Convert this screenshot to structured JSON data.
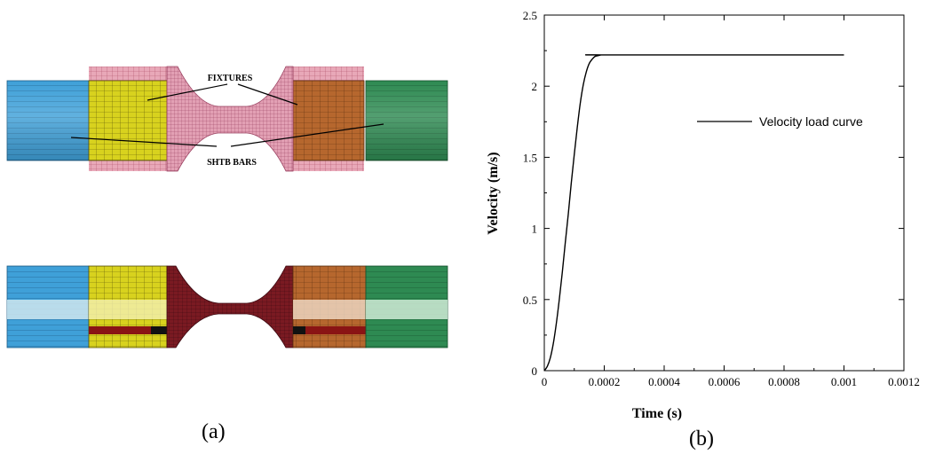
{
  "figure_a": {
    "caption": "(a)",
    "labels": {
      "fixtures": "FIXTURES",
      "bars": "SHTB BARS"
    },
    "colors": {
      "input_bar": "#3fa0d8",
      "output_bar": "#2e8a52",
      "fixture_left": "#d8d21e",
      "fixture_right": "#b6672e",
      "specimen_mesh": "#d98aa0",
      "specimen_deformed": "#7a1a22"
    }
  },
  "figure_b": {
    "caption": "(b)"
  },
  "chart_data": {
    "type": "line",
    "title": "",
    "xlabel": "Time (s)",
    "ylabel": "Velocity (m/s)",
    "xlim": [
      0,
      0.0012
    ],
    "ylim": [
      0,
      2.5
    ],
    "x_ticks": [
      0,
      0.0002,
      0.0004,
      0.0006,
      0.0008,
      0.001,
      0.0012
    ],
    "x_tick_labels": [
      "0",
      "0.0002",
      "0.0004",
      "0.0006",
      "0.0008",
      "0.001",
      "0.0012"
    ],
    "y_ticks": [
      0,
      0.5,
      1,
      1.5,
      2,
      2.5
    ],
    "y_tick_labels": [
      "0",
      "0.5",
      "1",
      "1.5",
      "2",
      "2.5"
    ],
    "legend_position": "right",
    "grid": false,
    "series": [
      {
        "name": "Velocity load curve",
        "color": "#000000",
        "x": [
          0,
          1e-05,
          2e-05,
          3e-05,
          4e-05,
          5e-05,
          6e-05,
          7e-05,
          8e-05,
          9e-05,
          0.0001,
          0.00011,
          0.00012,
          0.00013,
          0.00014,
          0.00015,
          0.00016,
          0.00017,
          0.00018,
          0.00019,
          0.0002,
          0.001
        ],
        "y": [
          0,
          0.03,
          0.09,
          0.19,
          0.33,
          0.5,
          0.69,
          0.9,
          1.1,
          1.32,
          1.52,
          1.71,
          1.88,
          2.01,
          2.1,
          2.16,
          2.19,
          2.21,
          2.215,
          2.22,
          2.22,
          2.22
        ]
      }
    ]
  }
}
